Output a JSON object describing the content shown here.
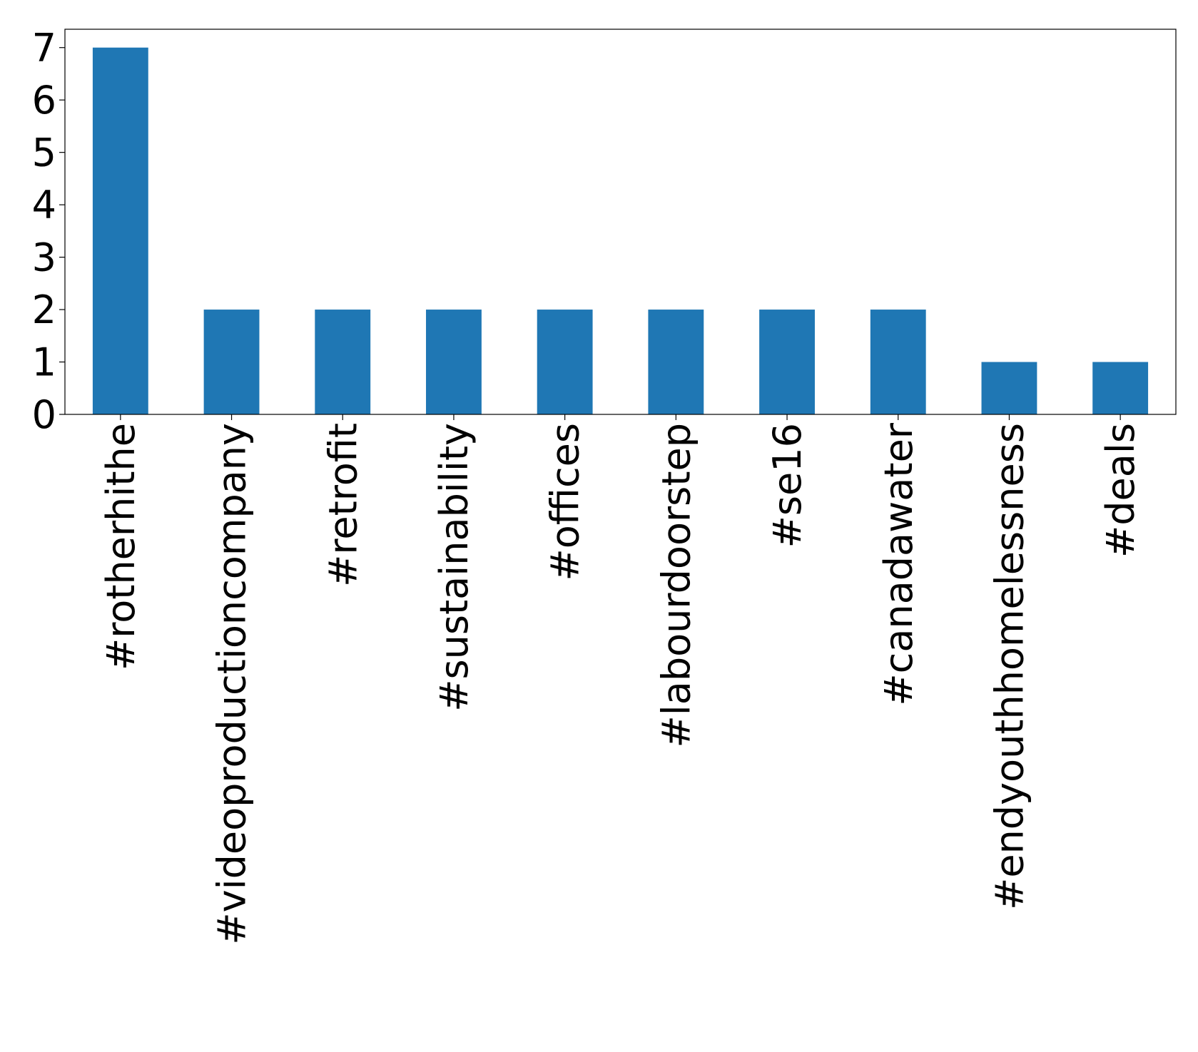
{
  "chart_data": {
    "type": "bar",
    "categories": [
      "#rotherhithe",
      "#videoproductioncompany",
      "#retrofit",
      "#sustainability",
      "#offices",
      "#labourdoorstep",
      "#se16",
      "#canadawater",
      "#endyouthhomelessness",
      "#deals"
    ],
    "values": [
      7,
      2,
      2,
      2,
      2,
      2,
      2,
      2,
      1,
      1
    ],
    "color": "#1f77b4",
    "ylim": [
      0,
      7.35
    ],
    "yticks": [
      0,
      1,
      2,
      3,
      4,
      5,
      6,
      7
    ],
    "grid": false
  }
}
